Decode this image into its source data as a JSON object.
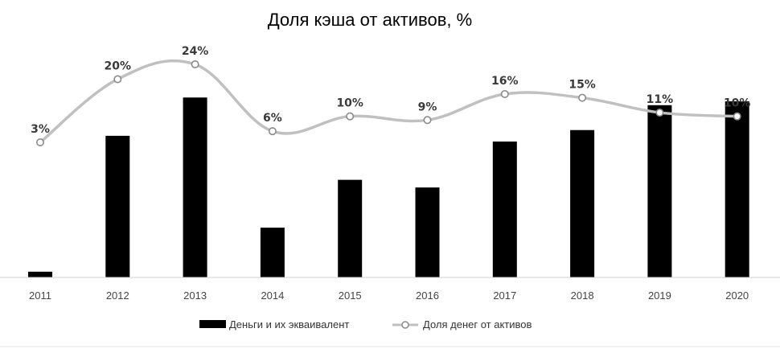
{
  "chart_data": {
    "type": "bar",
    "title": "Доля кэша от активов, %",
    "categories": [
      "2011",
      "2012",
      "2013",
      "2014",
      "2015",
      "2016",
      "2017",
      "2018",
      "2019",
      "2020"
    ],
    "series": [
      {
        "name": "Деньги и их экваивалент",
        "type": "bar",
        "color": "#000000",
        "values": [
          3,
          74,
          94,
          26,
          51,
          47,
          71,
          77,
          90,
          92
        ]
      },
      {
        "name": "Доля денег от активов",
        "type": "line",
        "color": "#c0c0c0",
        "values": [
          3,
          20,
          24,
          6,
          10,
          9,
          16,
          15,
          11,
          10
        ],
        "labels": [
          "3%",
          "20%",
          "24%",
          "6%",
          "10%",
          "9%",
          "16%",
          "15%",
          "11%",
          "10%"
        ]
      }
    ],
    "grid": false,
    "legend": "bottom"
  }
}
